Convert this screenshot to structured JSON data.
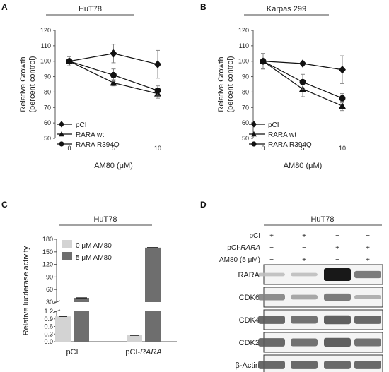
{
  "chart_data": [
    {
      "panel": "A",
      "type": "line",
      "title": "HuT78",
      "xlabel": "AM80 (μM)",
      "ylabel": "Relative Growth (percent control)",
      "ylim": [
        50,
        120
      ],
      "yticks": [
        "50",
        "60",
        "70",
        "80",
        "90",
        "100",
        "110",
        "120"
      ],
      "xticks": [
        "0",
        "5",
        "10"
      ],
      "x": [
        0,
        5,
        10
      ],
      "series": [
        {
          "name": "pCI",
          "marker": "diamond",
          "values": [
            100,
            105,
            98
          ],
          "err": [
            3,
            6,
            9
          ]
        },
        {
          "name": "RARA wt",
          "marker": "triangle",
          "values": [
            100,
            86,
            79
          ],
          "err": [
            3,
            2,
            3
          ]
        },
        {
          "name": "RARA R394Q",
          "marker": "circle",
          "values": [
            100,
            91,
            81
          ],
          "err": [
            3,
            4,
            3
          ]
        }
      ],
      "legend": "bottom-left"
    },
    {
      "panel": "B",
      "type": "line",
      "title": "Karpas 299",
      "xlabel": "AM80 (μM)",
      "ylabel": "Relative Growth (percent control)",
      "ylim": [
        50,
        120
      ],
      "yticks": [
        "50",
        "60",
        "70",
        "80",
        "90",
        "100",
        "110",
        "120"
      ],
      "xticks": [
        "0",
        "5",
        "10"
      ],
      "x": [
        0,
        5,
        10
      ],
      "series": [
        {
          "name": "pCI",
          "marker": "diamond",
          "values": [
            100,
            98.5,
            94.5
          ],
          "err": [
            5,
            0,
            9
          ]
        },
        {
          "name": "RARA wt",
          "marker": "triangle",
          "values": [
            100,
            82,
            71
          ],
          "err": [
            5,
            5,
            3
          ]
        },
        {
          "name": "RARA R394Q",
          "marker": "circle",
          "values": [
            100,
            86.5,
            76
          ],
          "err": [
            5,
            5,
            3
          ]
        }
      ],
      "legend": "bottom-left"
    },
    {
      "panel": "C",
      "type": "bar",
      "title": "HuT78",
      "ylabel": "Relative luciferase activity",
      "categories": [
        "pCI",
        "pCI-RARA"
      ],
      "yticks_low": [
        "0.0",
        "0.3",
        "0.6",
        "0.9",
        "1.2"
      ],
      "yticks_high": [
        "30",
        "60",
        "90",
        "120",
        "150",
        "180"
      ],
      "series": [
        {
          "name": "0 μM AM80",
          "color": "#d3d3d3",
          "values": [
            1.0,
            0.25
          ]
        },
        {
          "name": "5 μM AM80",
          "color": "#6e6e6e",
          "values": [
            40,
            160
          ]
        }
      ],
      "legend": "top-left"
    }
  ],
  "western_blot": {
    "panel": "D",
    "title": "HuT78",
    "rows": [
      {
        "label": "pCI",
        "marks": [
          "+",
          "+",
          "−",
          "−"
        ]
      },
      {
        "label": "pCI-RARA",
        "label_main": "pCI-",
        "label_italic": "RARA",
        "marks": [
          "−",
          "−",
          "+",
          "+"
        ]
      },
      {
        "label": "AM80 (5 μM)",
        "marks": [
          "−",
          "+",
          "−",
          "+"
        ]
      }
    ],
    "bands": [
      {
        "label": "RARA",
        "intensity": [
          0.05,
          0.05,
          1.0,
          0.45
        ]
      },
      {
        "label": "CDK6",
        "intensity": [
          0.35,
          0.2,
          0.45,
          0.15
        ]
      },
      {
        "label": "CDK4",
        "intensity": [
          0.55,
          0.5,
          0.6,
          0.55
        ]
      },
      {
        "label": "CDK2",
        "intensity": [
          0.55,
          0.5,
          0.6,
          0.5
        ]
      },
      {
        "label": "β-Actin",
        "intensity": [
          0.55,
          0.55,
          0.55,
          0.55
        ]
      }
    ]
  }
}
